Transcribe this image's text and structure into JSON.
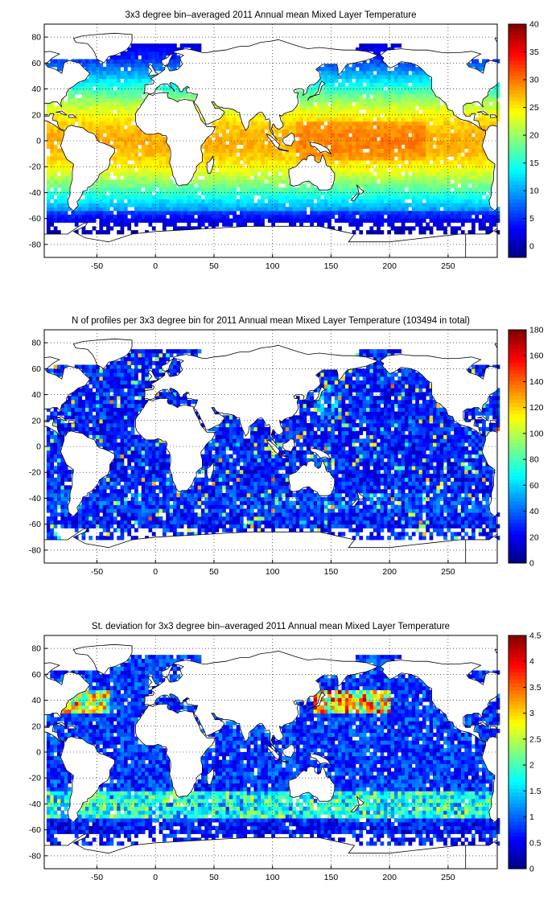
{
  "chart_data": [
    {
      "type": "heatmap",
      "title": "3x3 degree bin–averaged 2011 Annual mean Mixed Layer Temperature",
      "xlabel": "",
      "ylabel": "",
      "xlim": [
        -95,
        292
      ],
      "ylim": [
        -90,
        90
      ],
      "x_ticks": [
        -50,
        0,
        50,
        100,
        150,
        200,
        250
      ],
      "y_ticks": [
        80,
        60,
        40,
        20,
        0,
        -20,
        -40,
        -60,
        -80
      ],
      "x_tick_labels": [
        "-50",
        "0",
        "50",
        "100",
        "150",
        "200",
        "250"
      ],
      "y_tick_labels": [
        "80",
        "60",
        "40",
        "20",
        "0",
        "-20",
        "-40",
        "-60",
        "-80"
      ],
      "bin_size_deg": 3,
      "grid": true,
      "colorbar": {
        "min": -2,
        "max": 40,
        "ticks": [
          0,
          5,
          10,
          15,
          20,
          25,
          30,
          35,
          40
        ],
        "tick_labels": [
          "0",
          "5",
          "10",
          "15",
          "20",
          "25",
          "30",
          "35",
          "40"
        ],
        "colormap": "jet"
      }
    },
    {
      "type": "heatmap",
      "title": "N of profiles per 3x3 degree bin for 2011 Annual mean Mixed Layer Temperature  (103494 in total)",
      "xlabel": "",
      "ylabel": "",
      "xlim": [
        -95,
        292
      ],
      "ylim": [
        -90,
        90
      ],
      "x_ticks": [
        -50,
        0,
        50,
        100,
        150,
        200,
        250
      ],
      "y_ticks": [
        80,
        60,
        40,
        20,
        0,
        -20,
        -40,
        -60,
        -80
      ],
      "x_tick_labels": [
        "-50",
        "0",
        "50",
        "100",
        "150",
        "200",
        "250"
      ],
      "y_tick_labels": [
        "80",
        "60",
        "40",
        "20",
        "0",
        "-20",
        "-40",
        "-60",
        "-80"
      ],
      "bin_size_deg": 3,
      "grid": true,
      "colorbar": {
        "min": 0,
        "max": 180,
        "ticks": [
          0,
          20,
          40,
          60,
          80,
          100,
          120,
          140,
          160,
          180
        ],
        "tick_labels": [
          "0",
          "20",
          "40",
          "60",
          "80",
          "100",
          "120",
          "140",
          "160",
          "180"
        ],
        "colormap": "jet"
      }
    },
    {
      "type": "heatmap",
      "title": "St. deviation for 3x3 degree bin–averaged 2011 Annual mean Mixed Layer Temperature",
      "xlabel": "",
      "ylabel": "",
      "xlim": [
        -95,
        292
      ],
      "ylim": [
        -90,
        90
      ],
      "x_ticks": [
        -50,
        0,
        50,
        100,
        150,
        200,
        250
      ],
      "y_ticks": [
        80,
        60,
        40,
        20,
        0,
        -20,
        -40,
        -60,
        -80
      ],
      "x_tick_labels": [
        "-50",
        "0",
        "50",
        "100",
        "150",
        "200",
        "250"
      ],
      "y_tick_labels": [
        "80",
        "60",
        "40",
        "20",
        "0",
        "-20",
        "-40",
        "-60",
        "-80"
      ],
      "bin_size_deg": 3,
      "grid": true,
      "colorbar": {
        "min": 0,
        "max": 4.5,
        "ticks": [
          0,
          0.5,
          1,
          1.5,
          2,
          2.5,
          3,
          3.5,
          4,
          4.5
        ],
        "tick_labels": [
          "0",
          "0.5",
          "1",
          "1.5",
          "2",
          "2.5",
          "3",
          "3.5",
          "4",
          "4.5"
        ],
        "colormap": "jet"
      }
    }
  ]
}
